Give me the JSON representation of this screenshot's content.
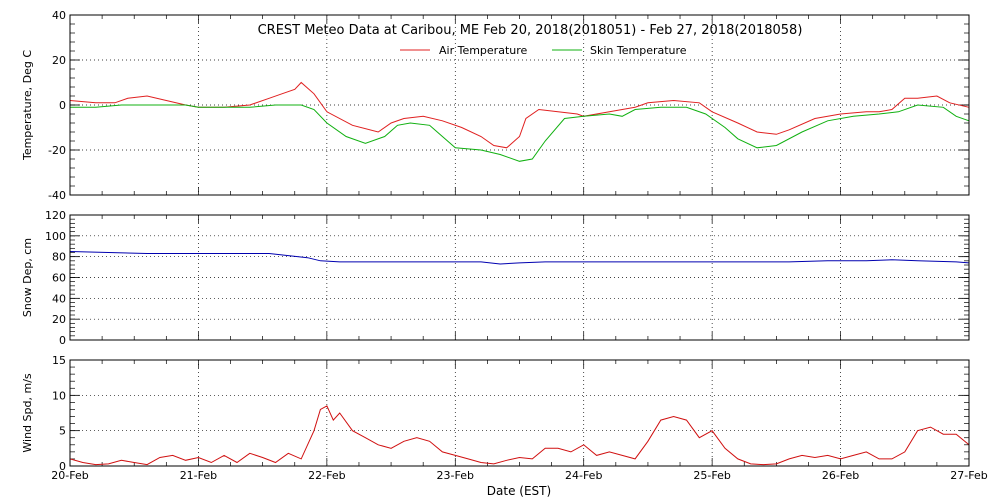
{
  "title": "CREST Meteo Data at Caribou, ME    Feb 20, 2018(2018051) - Feb 27, 2018(2018058)",
  "legend": [
    {
      "label": "Air Temperature",
      "color": "#e02020"
    },
    {
      "label": "Skin Temperature",
      "color": "#10b010"
    }
  ],
  "xaxis": {
    "label": "Date (EST)",
    "ticks": [
      "20-Feb",
      "21-Feb",
      "22-Feb",
      "23-Feb",
      "24-Feb",
      "25-Feb",
      "26-Feb",
      "27-Feb"
    ],
    "range_days": [
      0,
      7
    ]
  },
  "chart_data": [
    {
      "type": "line",
      "panel": "temperature",
      "ylabel": "Temperature, Deg C",
      "ylim": [
        -40,
        40
      ],
      "yticks": [
        40,
        20,
        0,
        -20,
        -40
      ],
      "grid": true,
      "legend_position": "top-center",
      "series": [
        {
          "name": "Air Temperature",
          "color": "#e02020",
          "x": [
            0,
            0.2,
            0.35,
            0.45,
            0.6,
            0.75,
            0.9,
            1.0,
            1.2,
            1.4,
            1.55,
            1.65,
            1.75,
            1.8,
            1.9,
            2.0,
            2.2,
            2.4,
            2.5,
            2.6,
            2.75,
            2.9,
            3.05,
            3.2,
            3.3,
            3.4,
            3.5,
            3.55,
            3.65,
            3.8,
            3.95,
            4.0,
            4.2,
            4.4,
            4.5,
            4.7,
            4.9,
            5.0,
            5.2,
            5.35,
            5.5,
            5.6,
            5.8,
            6.0,
            6.2,
            6.3,
            6.4,
            6.5,
            6.6,
            6.75,
            6.85,
            7.0
          ],
          "y": [
            2,
            1,
            1,
            3,
            4,
            2,
            0,
            -1,
            -1,
            0,
            3,
            5,
            7,
            10,
            5,
            -3,
            -9,
            -12,
            -8,
            -6,
            -5,
            -7,
            -10,
            -14,
            -18,
            -19,
            -14,
            -6,
            -2,
            -3,
            -4,
            -5,
            -3,
            -1,
            1,
            2,
            1,
            -3,
            -8,
            -12,
            -13,
            -11,
            -6,
            -4,
            -3,
            -3,
            -2,
            3,
            3,
            4,
            1,
            -1
          ]
        },
        {
          "name": "Skin Temperature",
          "color": "#10b010",
          "x": [
            0,
            0.2,
            0.4,
            0.6,
            0.9,
            1.0,
            1.2,
            1.4,
            1.6,
            1.8,
            1.9,
            2.0,
            2.15,
            2.3,
            2.45,
            2.55,
            2.65,
            2.8,
            2.9,
            3.0,
            3.2,
            3.35,
            3.5,
            3.6,
            3.7,
            3.85,
            4.0,
            4.2,
            4.3,
            4.4,
            4.6,
            4.8,
            4.95,
            5.1,
            5.2,
            5.35,
            5.5,
            5.7,
            5.9,
            6.1,
            6.3,
            6.45,
            6.6,
            6.8,
            6.9,
            7.0
          ],
          "y": [
            -1,
            -1,
            0,
            0,
            0,
            -1,
            -1,
            -1,
            0,
            0,
            -2,
            -8,
            -14,
            -17,
            -14,
            -9,
            -8,
            -9,
            -14,
            -19,
            -20,
            -22,
            -25,
            -24,
            -16,
            -6,
            -5,
            -4,
            -5,
            -2,
            -1,
            -1,
            -4,
            -10,
            -15,
            -19,
            -18,
            -12,
            -7,
            -5,
            -4,
            -3,
            0,
            -1,
            -5,
            -7
          ]
        }
      ]
    },
    {
      "type": "line",
      "panel": "snow",
      "ylabel": "Snow Dep, cm",
      "ylim": [
        0,
        120
      ],
      "yticks": [
        120,
        100,
        80,
        60,
        40,
        20,
        0
      ],
      "grid": true,
      "series": [
        {
          "color": "#0000b0",
          "x": [
            0,
            0.3,
            0.6,
            1.0,
            1.3,
            1.55,
            1.7,
            1.85,
            1.95,
            2.1,
            2.4,
            2.8,
            3.2,
            3.35,
            3.5,
            3.7,
            4.0,
            4.4,
            4.8,
            5.2,
            5.6,
            5.9,
            6.2,
            6.4,
            6.6,
            6.9,
            7.0
          ],
          "y": [
            85,
            84,
            83,
            83,
            83,
            83,
            81,
            79,
            76,
            75,
            75,
            75,
            75,
            73,
            74,
            75,
            75,
            75,
            75,
            75,
            75,
            76,
            76,
            77,
            76,
            75,
            74
          ]
        }
      ]
    },
    {
      "type": "line",
      "panel": "wind",
      "ylabel": "Wind Spd, m/s",
      "ylim": [
        0,
        15
      ],
      "yticks": [
        15,
        10,
        5,
        0
      ],
      "grid": true,
      "series": [
        {
          "color": "#d01010",
          "x": [
            0,
            0.1,
            0.2,
            0.3,
            0.4,
            0.5,
            0.6,
            0.7,
            0.8,
            0.9,
            1.0,
            1.1,
            1.2,
            1.3,
            1.4,
            1.5,
            1.6,
            1.7,
            1.8,
            1.9,
            1.95,
            2.0,
            2.05,
            2.1,
            2.2,
            2.3,
            2.4,
            2.5,
            2.6,
            2.7,
            2.8,
            2.9,
            3.0,
            3.1,
            3.2,
            3.3,
            3.4,
            3.5,
            3.6,
            3.7,
            3.8,
            3.9,
            4.0,
            4.1,
            4.2,
            4.3,
            4.4,
            4.5,
            4.6,
            4.7,
            4.8,
            4.9,
            5.0,
            5.1,
            5.2,
            5.3,
            5.4,
            5.5,
            5.6,
            5.7,
            5.8,
            5.9,
            6.0,
            6.1,
            6.2,
            6.3,
            6.4,
            6.5,
            6.6,
            6.7,
            6.8,
            6.9,
            7.0
          ],
          "y": [
            1,
            0.5,
            0.2,
            0.3,
            0.8,
            0.5,
            0.2,
            1.2,
            1.5,
            0.8,
            1.2,
            0.5,
            1.5,
            0.5,
            1.8,
            1.2,
            0.5,
            1.8,
            1.0,
            5.0,
            8.0,
            8.5,
            6.5,
            7.5,
            5.0,
            4.0,
            3.0,
            2.5,
            3.5,
            4.0,
            3.5,
            2.0,
            1.5,
            1.0,
            0.5,
            0.3,
            0.8,
            1.2,
            1.0,
            2.5,
            2.5,
            2.0,
            3.0,
            1.5,
            2.0,
            1.5,
            1.0,
            3.5,
            6.5,
            7.0,
            6.5,
            4.0,
            5.0,
            2.5,
            1.0,
            0.3,
            0.2,
            0.3,
            1.0,
            1.5,
            1.2,
            1.5,
            1.0,
            1.5,
            2.0,
            1.0,
            1.0,
            2.0,
            5.0,
            5.5,
            4.5,
            4.5,
            3.0
          ]
        }
      ]
    }
  ]
}
